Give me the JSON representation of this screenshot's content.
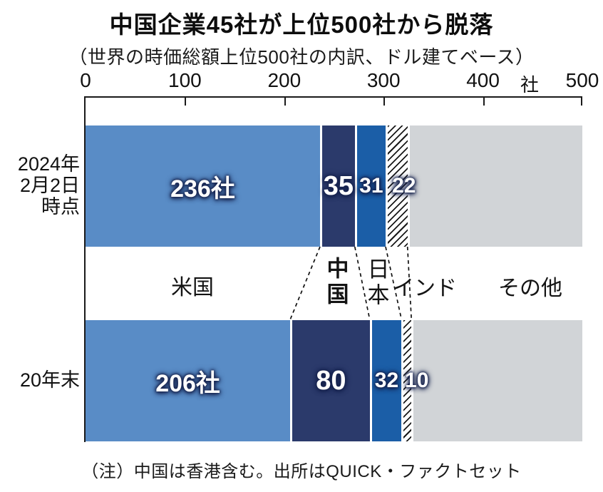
{
  "title": "中国企業45社が上位500社から脱落",
  "subtitle": "（世界の時価総額上位500社の内訳、ドル建てベース）",
  "note": "（注）中国は香港含む。出所はQUICK・ファクトセット",
  "axis": {
    "unit": "社",
    "tick_labels": [
      "0",
      "100",
      "200",
      "300",
      "400",
      "500"
    ]
  },
  "rows": [
    {
      "label": "2024年\n2月2日\n時点"
    },
    {
      "label": "20年末"
    }
  ],
  "categories": {
    "us": "米国",
    "china": "中国",
    "japan": "日本",
    "india": "インド",
    "others": "その他"
  },
  "colors": {
    "us": "#598cc6",
    "china": "#2b3a6b",
    "japan": "#1b5ea7",
    "others": "#d1d4d7",
    "hatch_line": "#191919",
    "label_glow": "#16224d"
  },
  "chart_data": {
    "type": "bar",
    "orientation": "horizontal-stacked",
    "title": "中国企業45社が上位500社から脱落",
    "subtitle": "（世界の時価総額上位500社の内訳、ドル建てベース）",
    "unit": "社",
    "xlim": [
      0,
      500
    ],
    "x_ticks": [
      0,
      100,
      200,
      300,
      400,
      500
    ],
    "grid": false,
    "categories": [
      "米国",
      "中国",
      "日本",
      "インド",
      "その他"
    ],
    "series": [
      {
        "name": "2024年2月2日時点",
        "values": [
          236,
          35,
          31,
          22,
          176
        ],
        "labels": [
          "236社",
          "35",
          "31",
          "22",
          ""
        ]
      },
      {
        "name": "20年末",
        "values": [
          206,
          80,
          32,
          10,
          172
        ],
        "labels": [
          "206社",
          "80",
          "32",
          "10",
          ""
        ]
      }
    ],
    "india_pattern": "diagonal-hatch",
    "note": "（注）中国は香港含む。出所はQUICK・ファクトセット"
  }
}
